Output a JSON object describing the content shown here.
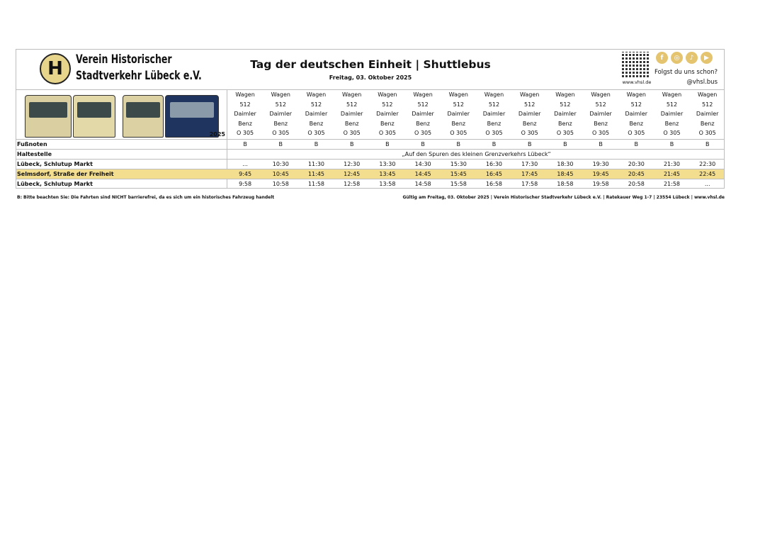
{
  "header": {
    "logo_letter": "H",
    "org_line1": "Verein Historischer",
    "org_line2": "Stadtverkehr Lübeck e.V.",
    "title": "Tag der deutschen Einheit | Shuttlebus",
    "subtitle": "Freitag, 03. Oktober 2025",
    "qr_url": "www.vhsl.de",
    "social_icons": [
      "facebook-icon",
      "instagram-icon",
      "tiktok-icon",
      "youtube-icon"
    ],
    "follow_text": "Folgst du uns schon?",
    "handle": "@vhsl.bus",
    "image_year": "2025"
  },
  "colors": {
    "highlight": "#f3dd8f",
    "accent": "#e4c46f",
    "border": "#bdbdbd"
  },
  "vehicles": [
    "Wagen 512 Daimler Benz O 305",
    "Wagen 512 Daimler Benz O 305",
    "Wagen 512 Daimler Benz O 305",
    "Wagen 512 Daimler Benz O 305",
    "Wagen 512 Daimler Benz O 305",
    "Wagen 512 Daimler Benz O 305",
    "Wagen 512 Daimler Benz O 305",
    "Wagen 512 Daimler Benz O 305",
    "Wagen 512 Daimler Benz O 305",
    "Wagen 512 Daimler Benz O 305",
    "Wagen 512 Daimler Benz O 305",
    "Wagen 512 Daimler Benz O 305",
    "Wagen 512 Daimler Benz O 305",
    "Wagen 512 Daimler Benz O 305"
  ],
  "vehicle_lines": [
    "Wagen",
    "512",
    "Daimler",
    "Benz",
    "O 305"
  ],
  "footnotes_label": "Fußnoten",
  "footnotes": [
    "B",
    "B",
    "B",
    "B",
    "B",
    "B",
    "B",
    "B",
    "B",
    "B",
    "B",
    "B",
    "B",
    "B"
  ],
  "stop_label": "Haltestelle",
  "route_name": "„Auf den Spuren des kleinen Grenzverkehrs Lübeck“",
  "stops": [
    {
      "name": "Lübeck, Schlutup Markt",
      "times": [
        "...",
        "10:30",
        "11:30",
        "12:30",
        "13:30",
        "14:30",
        "15:30",
        "16:30",
        "17:30",
        "18:30",
        "19:30",
        "20:30",
        "21:30",
        "22:30"
      ]
    },
    {
      "name": "Selmsdorf, Straße der Freiheit",
      "highlight": true,
      "times": [
        "9:45",
        "10:45",
        "11:45",
        "12:45",
        "13:45",
        "14:45",
        "15:45",
        "16:45",
        "17:45",
        "18:45",
        "19:45",
        "20:45",
        "21:45",
        "22:45"
      ]
    },
    {
      "name": "Lübeck, Schlutup Markt",
      "times": [
        "9:58",
        "10:58",
        "11:58",
        "12:58",
        "13:58",
        "14:58",
        "15:58",
        "16:58",
        "17:58",
        "18:58",
        "19:58",
        "20:58",
        "21:58",
        "..."
      ]
    }
  ],
  "footer": {
    "note": "B: Bitte beachten Sie: Die Fahrten sind NICHT barrierefrei, da es sich um ein historisches Fahrzeug handelt",
    "validity": "Gültig am Freitag, 03. Oktober 2025 | Verein Historischer Stadtverkehr Lübeck e.V. | Ratekauer Weg 1-7 | 23554 Lübeck | www.vhsl.de"
  }
}
